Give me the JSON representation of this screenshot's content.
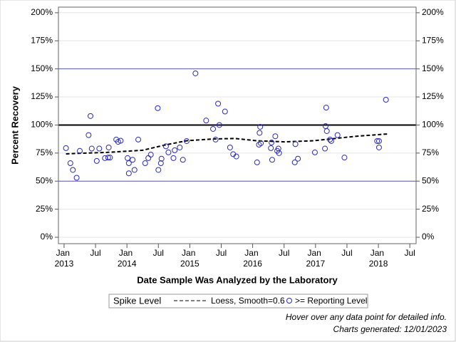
{
  "chart_data": {
    "type": "scatter",
    "ylabel": "Percent Recovery",
    "xlabel": "Date Sample Was Analyzed by the Laboratory",
    "legend_title": "Spike Level",
    "xlim": [
      2012.91,
      2018.6
    ],
    "xticks": [
      {
        "value": 2013,
        "label": "Jan 2013"
      },
      {
        "value": 2013.5,
        "label": "Jul"
      },
      {
        "value": 2014,
        "label": "Jan 2014"
      },
      {
        "value": 2014.5,
        "label": "Jul"
      },
      {
        "value": 2015,
        "label": "Jan 2015"
      },
      {
        "value": 2015.5,
        "label": "Jul"
      },
      {
        "value": 2016,
        "label": "Jan 2016"
      },
      {
        "value": 2016.5,
        "label": "Jul"
      },
      {
        "value": 2017,
        "label": "Jan 2017"
      },
      {
        "value": 2017.5,
        "label": "Jul"
      },
      {
        "value": 2018,
        "label": "Jan 2018"
      },
      {
        "value": 2018.5,
        "label": "Jul"
      }
    ],
    "ylim": [
      -5.7,
      205
    ],
    "yticks": [
      {
        "value": 0,
        "label": "0%"
      },
      {
        "value": 25,
        "label": "25%"
      },
      {
        "value": 50,
        "label": "50%"
      },
      {
        "value": 75,
        "label": "75%"
      },
      {
        "value": 100,
        "label": "100%"
      },
      {
        "value": 125,
        "label": "125%"
      },
      {
        "value": 150,
        "label": "150%"
      },
      {
        "value": 175,
        "label": "175%"
      },
      {
        "value": 200,
        "label": "200%"
      }
    ],
    "grid": true,
    "reference_lines": [
      {
        "value": 50,
        "color": "#5b5ba8"
      },
      {
        "value": 100,
        "color": "#000000"
      },
      {
        "value": 150,
        "color": "#5b5ba8"
      }
    ],
    "series": [
      {
        "name": "Loess, Smooth=0.6",
        "type": "line",
        "color": "#000000",
        "x": [
          2013.03,
          2013.34,
          2013.68,
          2014.25,
          2014.59,
          2014.95,
          2015.38,
          2015.72,
          2016.06,
          2016.51,
          2016.97,
          2017.31,
          2017.65,
          2018.14
        ],
        "values": [
          74.3,
          75,
          75.6,
          77.5,
          82,
          86,
          87.6,
          88,
          86,
          85,
          86,
          88,
          90,
          92
        ]
      },
      {
        "name": ">= Reporting Level",
        "type": "scatter",
        "color": "#2b2bb8",
        "x": [
          2013.03,
          2013.1,
          2013.14,
          2013.2,
          2013.25,
          2013.39,
          2013.42,
          2013.44,
          2013.52,
          2013.56,
          2013.65,
          2013.7,
          2013.71,
          2013.73,
          2013.83,
          2013.86,
          2013.9,
          2014.01,
          2014.03,
          2014.03,
          2014.09,
          2014.12,
          2014.18,
          2014.29,
          2014.34,
          2014.38,
          2014.49,
          2014.5,
          2014.54,
          2014.55,
          2014.62,
          2014.66,
          2014.74,
          2014.76,
          2014.84,
          2014.89,
          2014.95,
          2015.09,
          2015.26,
          2015.37,
          2015.41,
          2015.45,
          2015.47,
          2015.56,
          2015.64,
          2015.69,
          2015.74,
          2016.07,
          2016.1,
          2016.11,
          2016.12,
          2016.13,
          2016.29,
          2016.3,
          2016.31,
          2016.36,
          2016.39,
          2016.41,
          2016.42,
          2016.67,
          2016.68,
          2016.72,
          2016.99,
          2017.15,
          2017.16,
          2017.17,
          2017.18,
          2017.23,
          2017.25,
          2017.35,
          2017.46,
          2017.98,
          2018.01,
          2018.01,
          2018.12
        ],
        "values": [
          79.4,
          66,
          60,
          53,
          77,
          91,
          108,
          79,
          68,
          79,
          70.5,
          71,
          80,
          71,
          87,
          85,
          86,
          70.5,
          66,
          57,
          69,
          60,
          87,
          66,
          70.5,
          73.6,
          115,
          60,
          66,
          70,
          81,
          75.6,
          70.5,
          77.5,
          80,
          69,
          85.7,
          146,
          104,
          96.5,
          87,
          119,
          100,
          112,
          80,
          74,
          72,
          66.7,
          82.5,
          93,
          98.4,
          83.8,
          79.4,
          84.4,
          69,
          90,
          77,
          79,
          75,
          66.7,
          83,
          70,
          75.6,
          79,
          99,
          115.5,
          94.6,
          87,
          85.7,
          91,
          71,
          85.7,
          85.7,
          80,
          122.5
        ]
      }
    ]
  },
  "footnotes": [
    "Hover over any data point for detailed info.",
    "Charts generated: 12/01/2023"
  ]
}
